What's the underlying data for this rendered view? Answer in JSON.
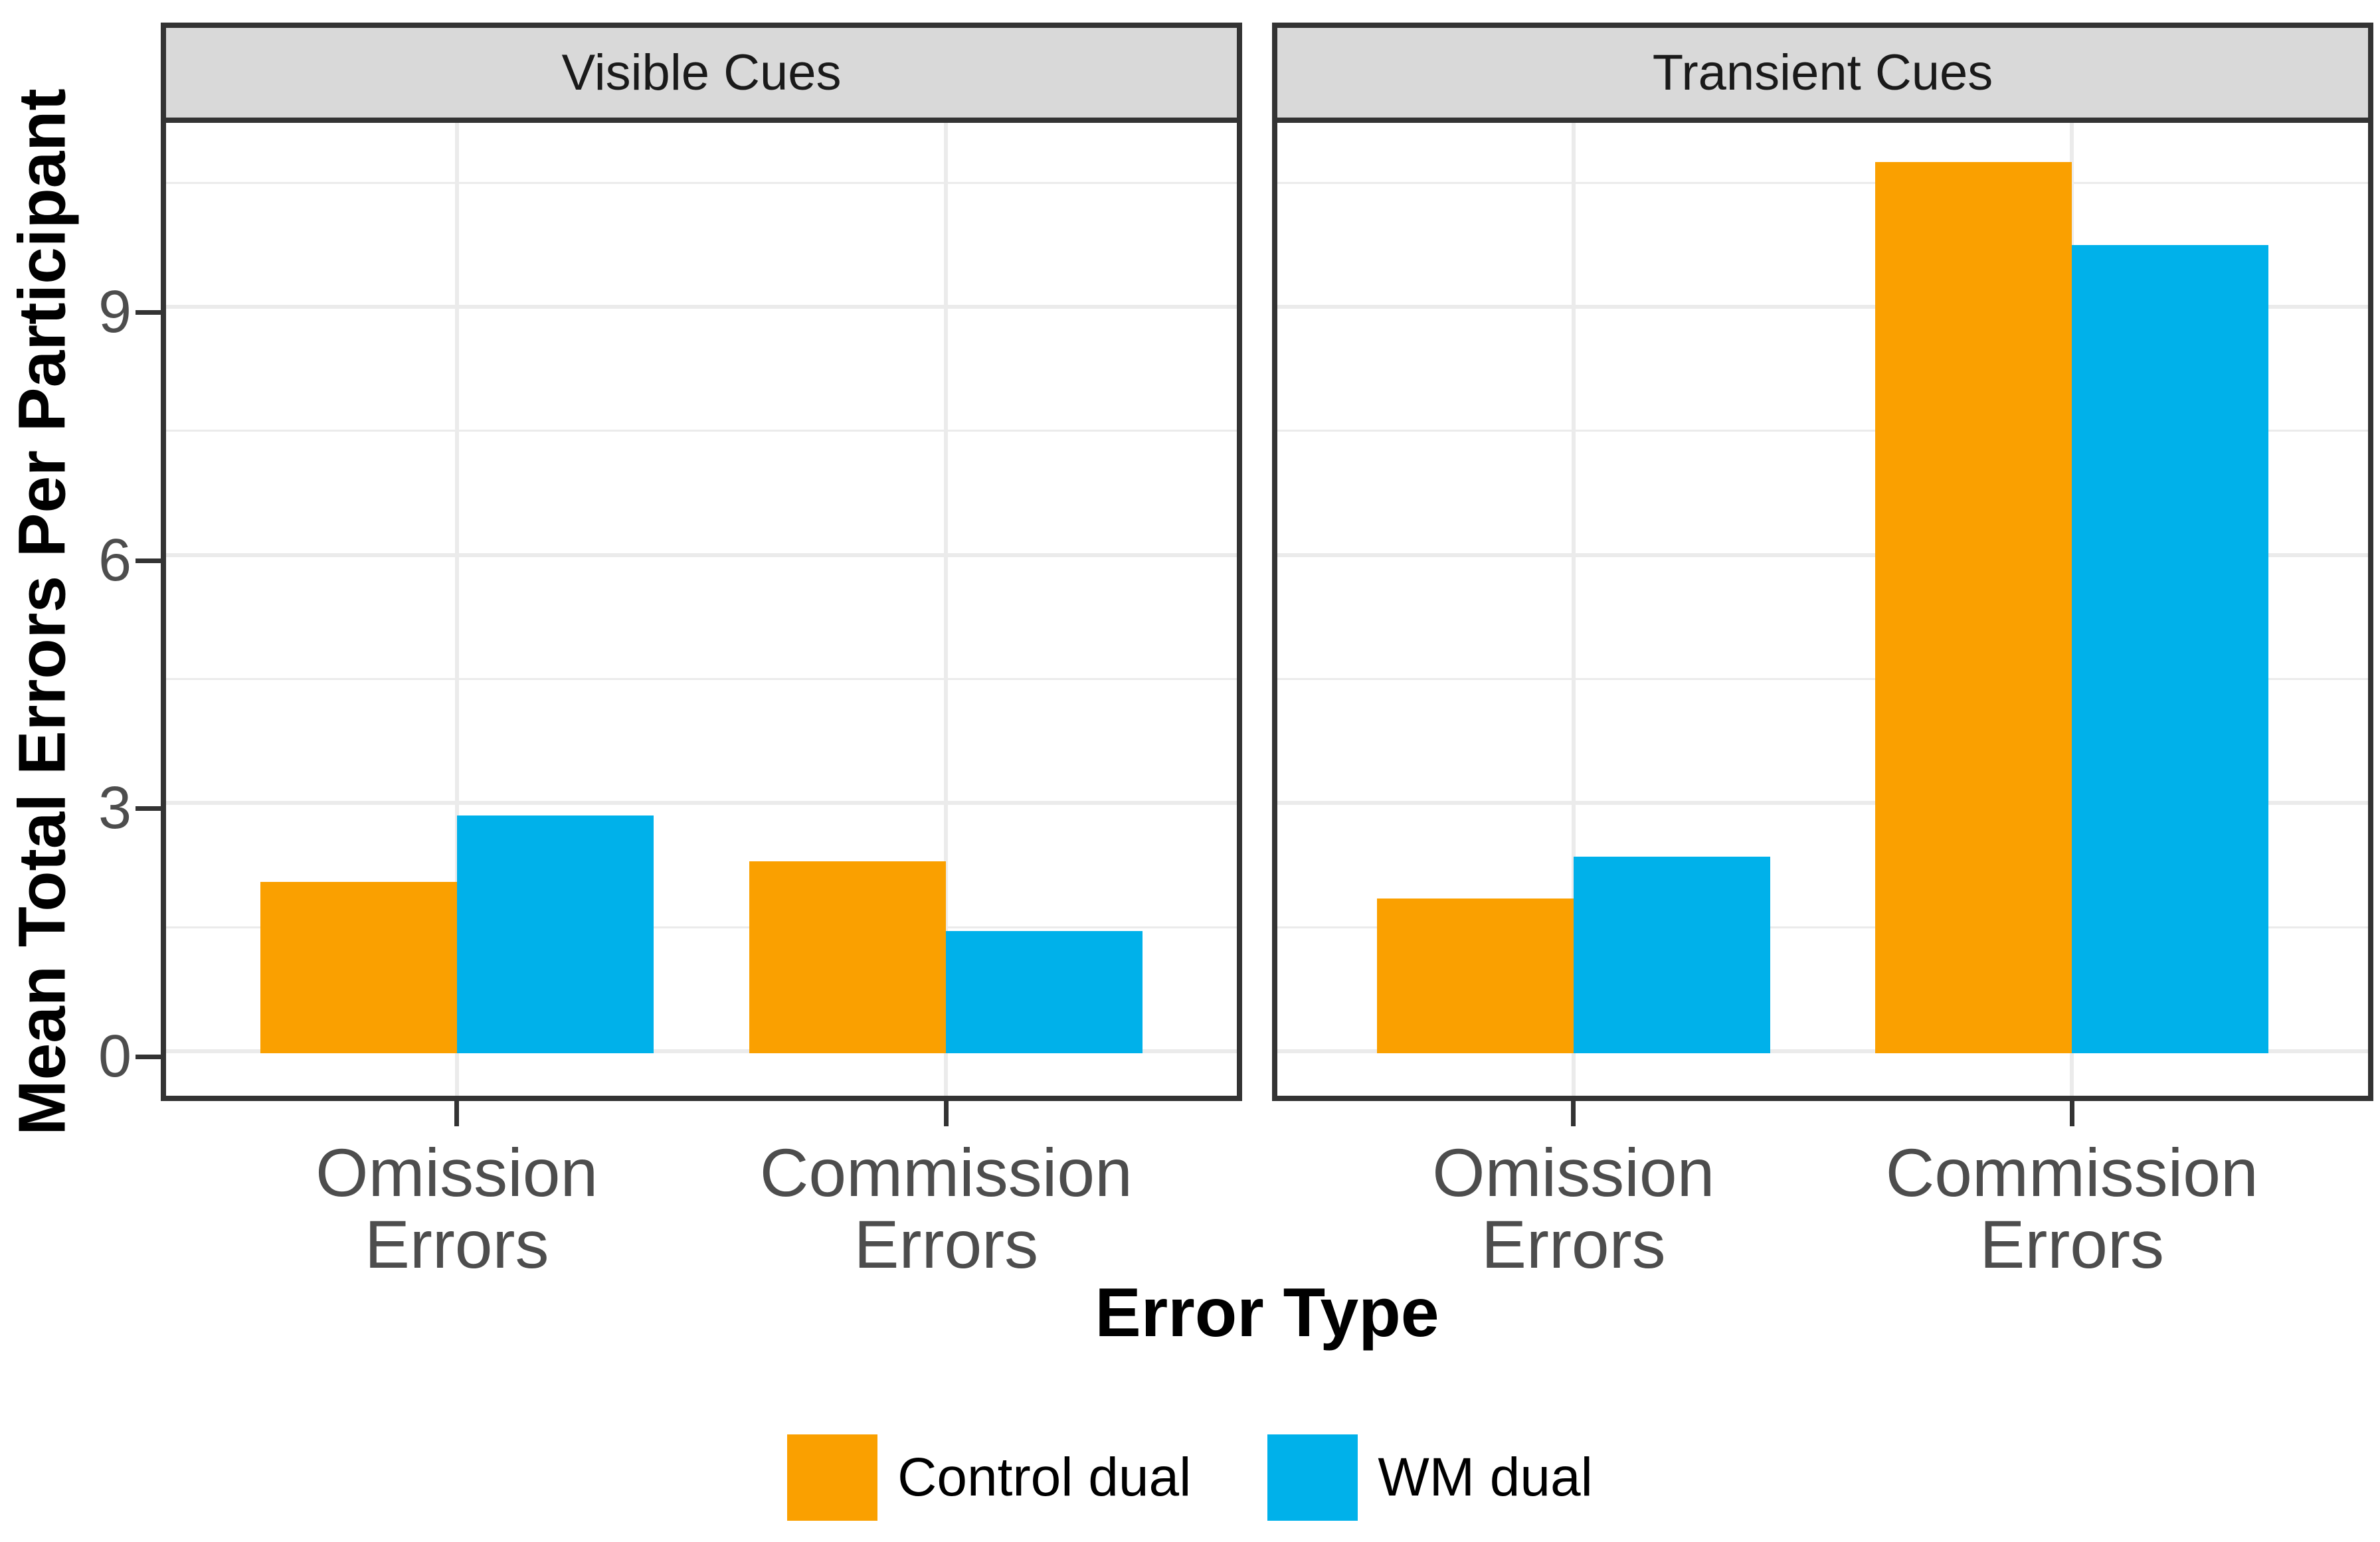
{
  "chart_data": {
    "type": "bar",
    "title": "",
    "xlabel": "Error Type",
    "ylabel": "Mean Total Errors Per Participant",
    "ylim": [
      -0.5375,
      11.2875
    ],
    "y_major_ticks": [
      0,
      3,
      6,
      9
    ],
    "y_minor_gridlines": [
      1.5,
      4.5,
      7.5,
      10.5
    ],
    "grid": "major-and-minor-horizontal, major-vertical-at-category",
    "legend_position": "bottom",
    "facets": [
      {
        "label": "Visible Cues",
        "groups": [
          {
            "category_lines": [
              "Omission",
              "Errors"
            ],
            "values": [
              2.05,
              2.85
            ]
          },
          {
            "category_lines": [
              "Commission",
              "Errors"
            ],
            "values": [
              2.3,
              1.45
            ]
          }
        ]
      },
      {
        "label": "Transient Cues",
        "groups": [
          {
            "category_lines": [
              "Omission",
              "Errors"
            ],
            "values": [
              1.85,
              2.35
            ]
          },
          {
            "category_lines": [
              "Commission",
              "Errors"
            ],
            "values": [
              10.75,
              9.75
            ]
          }
        ]
      }
    ],
    "series": [
      {
        "name": "Control dual",
        "color": "#FAA000"
      },
      {
        "name": "WM dual",
        "color": "#00B1EA"
      }
    ]
  },
  "colors": {
    "control_dual": "#FAA000",
    "wm_dual": "#00B1EA",
    "gridline": "#EBEBEB",
    "panel_border": "#333333",
    "axis_text": "#4D4D4D",
    "strip_background": "#D9D9D9",
    "strip_text": "#1A1A1A",
    "title_text": "#000000"
  }
}
